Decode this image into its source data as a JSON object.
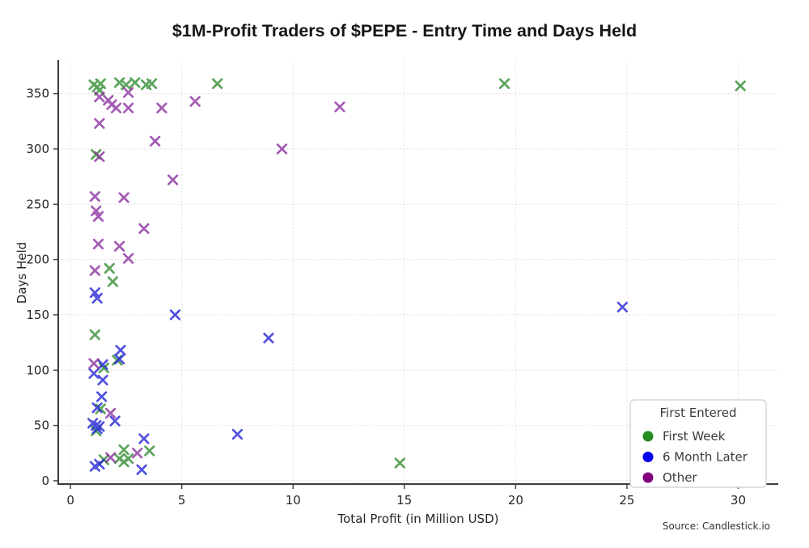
{
  "page": {
    "background": "#ffffff"
  },
  "chart_data": {
    "type": "scatter",
    "title": "$1M-Profit Traders of $PEPE - Entry Time and Days Held",
    "xlabel": "Total Profit (in Million USD)",
    "ylabel": "Days Held",
    "source": "Source: Candlestick.io",
    "xlim": [
      -0.55,
      31.8
    ],
    "ylim": [
      -3,
      379
    ],
    "xticks": [
      0,
      5,
      10,
      15,
      20,
      25,
      30
    ],
    "yticks": [
      0,
      50,
      100,
      150,
      200,
      250,
      300,
      350
    ],
    "grid": true,
    "marker": "x",
    "legend": {
      "title": "First Entered",
      "position": "lower right",
      "entries": [
        {
          "label": "First Week",
          "color": "#228B22"
        },
        {
          "label": "6 Month Later",
          "color": "#0000EE"
        },
        {
          "label": "Other",
          "color": "#800080"
        }
      ]
    },
    "series": [
      {
        "name": "First Week",
        "color": "#2f8b2f",
        "points": [
          [
            1.05,
            358
          ],
          [
            1.2,
            356
          ],
          [
            1.35,
            359
          ],
          [
            1.3,
            353
          ],
          [
            2.2,
            360
          ],
          [
            2.5,
            358
          ],
          [
            2.9,
            360
          ],
          [
            3.4,
            358
          ],
          [
            3.65,
            359
          ],
          [
            6.6,
            359
          ],
          [
            19.5,
            359
          ],
          [
            30.1,
            357
          ],
          [
            1.15,
            295
          ],
          [
            1.75,
            192
          ],
          [
            1.9,
            180
          ],
          [
            1.1,
            132
          ],
          [
            2.1,
            109
          ],
          [
            1.5,
            102
          ],
          [
            1.35,
            65
          ],
          [
            1.15,
            45
          ],
          [
            2.4,
            28
          ],
          [
            3.55,
            27
          ],
          [
            1.5,
            19
          ],
          [
            2.2,
            20
          ],
          [
            2.6,
            20
          ],
          [
            2.4,
            17
          ],
          [
            14.8,
            16
          ]
        ]
      },
      {
        "name": "6 Month Later",
        "color": "#2121d6",
        "points": [
          [
            1.1,
            170
          ],
          [
            1.2,
            165
          ],
          [
            2.25,
            118
          ],
          [
            2.2,
            110
          ],
          [
            1.45,
            105
          ],
          [
            1.05,
            97
          ],
          [
            1.45,
            91
          ],
          [
            4.7,
            150
          ],
          [
            8.9,
            129
          ],
          [
            24.8,
            157
          ],
          [
            1.4,
            76
          ],
          [
            1.2,
            66
          ],
          [
            2.0,
            54
          ],
          [
            1.0,
            52
          ],
          [
            1.15,
            50
          ],
          [
            1.3,
            49
          ],
          [
            1.2,
            47
          ],
          [
            3.3,
            38
          ],
          [
            7.5,
            42
          ],
          [
            1.3,
            15
          ],
          [
            1.1,
            13
          ],
          [
            3.2,
            10
          ]
        ]
      },
      {
        "name": "Other",
        "color": "#8a2f9e",
        "points": [
          [
            1.3,
            347
          ],
          [
            1.7,
            344
          ],
          [
            1.85,
            340
          ],
          [
            2.05,
            337
          ],
          [
            2.6,
            351
          ],
          [
            2.6,
            337
          ],
          [
            4.1,
            337
          ],
          [
            5.6,
            343
          ],
          [
            12.1,
            338
          ],
          [
            1.3,
            323
          ],
          [
            1.3,
            293
          ],
          [
            3.8,
            307
          ],
          [
            9.5,
            300
          ],
          [
            4.6,
            272
          ],
          [
            1.1,
            257
          ],
          [
            2.4,
            256
          ],
          [
            1.15,
            244
          ],
          [
            1.25,
            239
          ],
          [
            3.3,
            228
          ],
          [
            1.25,
            214
          ],
          [
            2.2,
            212
          ],
          [
            2.6,
            201
          ],
          [
            1.1,
            190
          ],
          [
            1.05,
            106
          ],
          [
            1.8,
            61
          ],
          [
            3.0,
            25
          ],
          [
            1.8,
            21
          ]
        ]
      }
    ]
  }
}
